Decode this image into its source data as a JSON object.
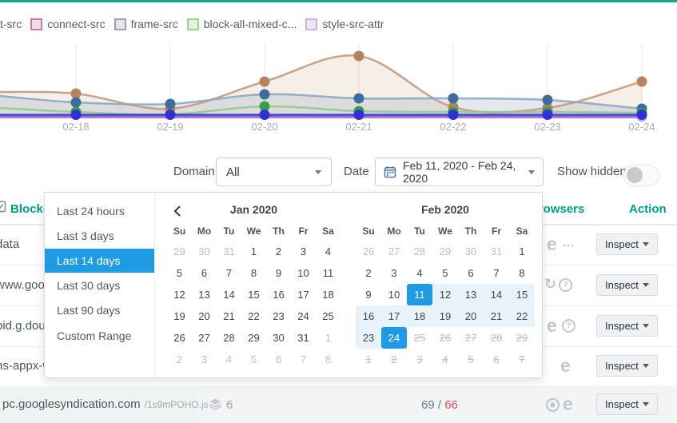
{
  "accents": {
    "topbar": "#14a487",
    "teal": "#00a08a",
    "blue": "#1f9be6",
    "red": "#e05151"
  },
  "legend": {
    "items": [
      {
        "label": "t-src"
      },
      {
        "label": "connect-src",
        "border": "#c779a7",
        "fill": "#f0dbe9"
      },
      {
        "label": "frame-src",
        "border": "#9aa0af",
        "fill": "#e4e6ec"
      },
      {
        "label": "block-all-mixed-c...",
        "border": "#97d690",
        "fill": "#e0f4dd"
      },
      {
        "label": "style-src-attr",
        "border": "#cfb2e4",
        "fill": "#f0e4f8"
      }
    ]
  },
  "chart_data": {
    "type": "line",
    "categories": [
      "02-18",
      "02-19",
      "02-20",
      "02-21",
      "02-22",
      "02-23",
      "02-24"
    ],
    "title": "",
    "xlabel": "",
    "ylabel": "",
    "grid": "vertical-only",
    "legend_position": "top",
    "series": [
      {
        "name": "tan-area",
        "color": "#c9987a",
        "dot_color": "#b9825f",
        "fill": "#c79a6e",
        "fill_opacity": 0.16,
        "dots": true,
        "left_edge_value": 33,
        "values": [
          31,
          12,
          46,
          78,
          14,
          13,
          46
        ]
      },
      {
        "name": "steel-blue-area",
        "color": "#8aa9c4",
        "dot_color": "#3e6d9c",
        "fill": "#7e99b2",
        "fill_opacity": 0.22,
        "dots": true,
        "left_edge_value": 28,
        "values": [
          20,
          18,
          30,
          25,
          25,
          23,
          12
        ]
      },
      {
        "name": "green",
        "color": "#8fcb90",
        "dot_color": "#37a047",
        "dots": true,
        "left_edge_value": 13,
        "values": [
          8,
          5,
          15,
          9,
          8,
          8,
          7
        ]
      },
      {
        "name": "pink",
        "color": "#dc9cc8",
        "left_edge_value": 1,
        "values": [
          1,
          1,
          1,
          1,
          1,
          1,
          1
        ]
      },
      {
        "name": "purple",
        "color": "#8d66d2",
        "width": 3.5,
        "left_edge_value": 2.5,
        "values": [
          2.5,
          2.5,
          2.5,
          2.5,
          2.5,
          2.5,
          2.5
        ]
      },
      {
        "name": "lavender",
        "color": "#c9a6e6",
        "dot_color": "#c9a6e6",
        "dots": true,
        "line": false,
        "left_edge_value": null,
        "values": [
          null,
          null,
          null,
          null,
          null,
          null,
          2
        ]
      },
      {
        "name": "royal-blue",
        "color": "#3b3bd4",
        "dot_color": "#3030d8",
        "dots": true,
        "left_edge_value": 4.5,
        "values": [
          4.5,
          4.5,
          4.5,
          4.5,
          4.5,
          4.5,
          4.5
        ]
      }
    ]
  },
  "filters": {
    "domain_label": "Domain",
    "domain_value": "All",
    "date_label": "Date",
    "date_value": "Feb 11, 2020 - Feb 24, 2020",
    "show_hidden_label": "Show hidden",
    "show_hidden_on": false
  },
  "datepicker": {
    "presets": [
      {
        "label": "Last 24 hours"
      },
      {
        "label": "Last 3 days"
      },
      {
        "label": "Last 14 days",
        "active": true
      },
      {
        "label": "Last 30 days"
      },
      {
        "label": "Last 90 days"
      },
      {
        "label": "Custom Range"
      }
    ],
    "weekdays": [
      "Su",
      "Mo",
      "Tu",
      "We",
      "Th",
      "Fr",
      "Sa"
    ],
    "months": [
      {
        "title": "Jan 2020",
        "days": [
          {
            "d": 29,
            "t": "m"
          },
          {
            "d": 30,
            "t": "m"
          },
          {
            "d": 31,
            "t": "m"
          },
          {
            "d": 1
          },
          {
            "d": 2
          },
          {
            "d": 3
          },
          {
            "d": 4
          },
          {
            "d": 5
          },
          {
            "d": 6
          },
          {
            "d": 7
          },
          {
            "d": 8
          },
          {
            "d": 9
          },
          {
            "d": 10
          },
          {
            "d": 11
          },
          {
            "d": 12
          },
          {
            "d": 13
          },
          {
            "d": 14
          },
          {
            "d": 15
          },
          {
            "d": 16
          },
          {
            "d": 17
          },
          {
            "d": 18
          },
          {
            "d": 19
          },
          {
            "d": 20
          },
          {
            "d": 21
          },
          {
            "d": 22
          },
          {
            "d": 23
          },
          {
            "d": 24
          },
          {
            "d": 25
          },
          {
            "d": 26
          },
          {
            "d": 27
          },
          {
            "d": 28
          },
          {
            "d": 29
          },
          {
            "d": 30
          },
          {
            "d": 31
          },
          {
            "d": 1,
            "t": "m"
          },
          {
            "d": 2,
            "t": "m"
          },
          {
            "d": 3,
            "t": "m"
          },
          {
            "d": 4,
            "t": "m"
          },
          {
            "d": 5,
            "t": "m"
          },
          {
            "d": 6,
            "t": "m"
          },
          {
            "d": 7,
            "t": "m"
          },
          {
            "d": 8,
            "t": "m"
          }
        ]
      },
      {
        "title": "Feb 2020",
        "days": [
          {
            "d": 26,
            "t": "m"
          },
          {
            "d": 27,
            "t": "m"
          },
          {
            "d": 28,
            "t": "m"
          },
          {
            "d": 29,
            "t": "m"
          },
          {
            "d": 30,
            "t": "m"
          },
          {
            "d": 31,
            "t": "m"
          },
          {
            "d": 1
          },
          {
            "d": 2
          },
          {
            "d": 3
          },
          {
            "d": 4
          },
          {
            "d": 5
          },
          {
            "d": 6
          },
          {
            "d": 7
          },
          {
            "d": 8
          },
          {
            "d": 9
          },
          {
            "d": 10
          },
          {
            "d": 11,
            "t": "s"
          },
          {
            "d": 12,
            "t": "r"
          },
          {
            "d": 13,
            "t": "r"
          },
          {
            "d": 14,
            "t": "r"
          },
          {
            "d": 15,
            "t": "r"
          },
          {
            "d": 16,
            "t": "r"
          },
          {
            "d": 17,
            "t": "r"
          },
          {
            "d": 18,
            "t": "r"
          },
          {
            "d": 19,
            "t": "r"
          },
          {
            "d": 20,
            "t": "r"
          },
          {
            "d": 21,
            "t": "r"
          },
          {
            "d": 22,
            "t": "r"
          },
          {
            "d": 23,
            "t": "r"
          },
          {
            "d": 24,
            "t": "s"
          },
          {
            "d": 25,
            "t": "x"
          },
          {
            "d": 26,
            "t": "x"
          },
          {
            "d": 27,
            "t": "x"
          },
          {
            "d": 28,
            "t": "x"
          },
          {
            "d": 29,
            "t": "x"
          },
          {
            "d": 1,
            "t": "x"
          },
          {
            "d": 2,
            "t": "x"
          },
          {
            "d": 3,
            "t": "x"
          },
          {
            "d": 4,
            "t": "x"
          },
          {
            "d": 5,
            "t": "x"
          },
          {
            "d": 6,
            "t": "x"
          },
          {
            "d": 7,
            "t": "x"
          }
        ]
      }
    ]
  },
  "table": {
    "headers": {
      "blocked": "Blocked",
      "browsers": "Browsers",
      "action": "Action"
    },
    "rows": [
      {
        "source": "data",
        "icons": [
          "edge",
          "ellipsis"
        ],
        "action": "Inspect"
      },
      {
        "source": "www.goog",
        "icons": [
          "refresh",
          "question"
        ],
        "action": "Inspect"
      },
      {
        "source": "bid.g.doub",
        "icons": [
          "edge",
          "question"
        ],
        "action": "Inspect"
      },
      {
        "source": "ns-appx-w",
        "icons": [
          "edge"
        ],
        "action": "Inspect"
      },
      {
        "source": "pc.googlesyndication.com",
        "path": "/1s9mPOHO.js",
        "count": "6",
        "blocked": "69",
        "failed": "66",
        "icons": [
          "chrome",
          "edge"
        ],
        "action": "Inspect"
      }
    ]
  }
}
